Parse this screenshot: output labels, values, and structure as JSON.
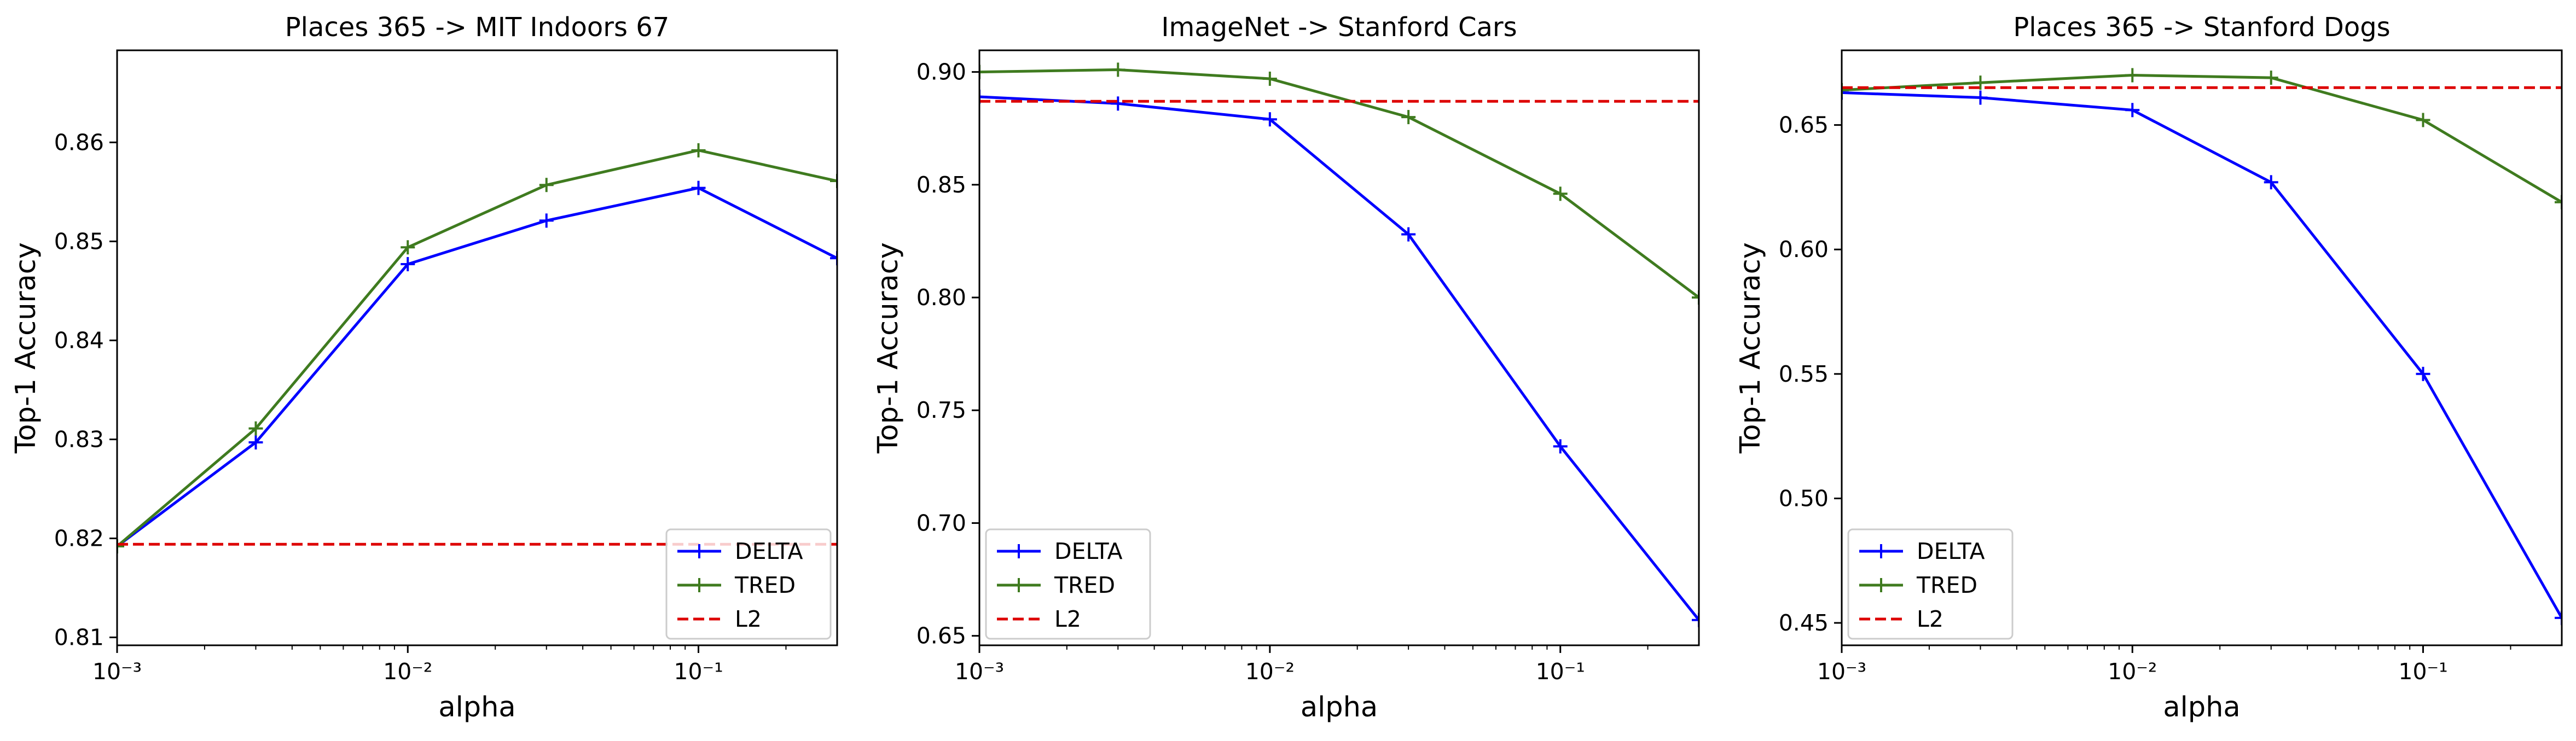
{
  "chart_data": [
    {
      "type": "line",
      "title": "Places 365 -> MIT Indoors 67",
      "xlabel": "alpha",
      "ylabel": "Top-1 Accuracy",
      "xscale": "log",
      "xlim": [
        0.001,
        0.3
      ],
      "ylim": [
        0.8092,
        0.8693
      ],
      "xticks": [
        {
          "value": 0.001,
          "label": "10⁻³"
        },
        {
          "value": 0.01,
          "label": "10⁻²"
        },
        {
          "value": 0.1,
          "label": "10⁻¹"
        }
      ],
      "yticks": [
        0.81,
        0.82,
        0.83,
        0.84,
        0.85,
        0.86
      ],
      "ytick_labels": [
        "0.81",
        "0.82",
        "0.83",
        "0.84",
        "0.85",
        "0.86"
      ],
      "legend_position": "lower right",
      "series": [
        {
          "name": "DELTA",
          "color": "#0000ff",
          "style": "solid",
          "marker": "+",
          "x": [
            0.001,
            0.003,
            0.01,
            0.03,
            0.1,
            0.3
          ],
          "y": [
            0.8192,
            0.8297,
            0.8477,
            0.8521,
            0.8554,
            0.8483
          ]
        },
        {
          "name": "TRED",
          "color": "#3f7b1f",
          "style": "solid",
          "marker": "+",
          "x": [
            0.001,
            0.003,
            0.01,
            0.03,
            0.1,
            0.3
          ],
          "y": [
            0.8192,
            0.8311,
            0.8494,
            0.8557,
            0.8592,
            0.8561
          ]
        },
        {
          "name": "L2",
          "color": "#dd0000",
          "style": "dashed",
          "marker": "",
          "x": [
            0.001,
            0.3
          ],
          "y": [
            0.8194,
            0.8194
          ]
        }
      ]
    },
    {
      "type": "line",
      "title": "ImageNet -> Stanford Cars",
      "xlabel": "alpha",
      "ylabel": "Top-1 Accuracy",
      "xscale": "log",
      "xlim": [
        0.001,
        0.3
      ],
      "ylim": [
        0.6458,
        0.9096
      ],
      "xticks": [
        {
          "value": 0.001,
          "label": "10⁻³"
        },
        {
          "value": 0.01,
          "label": "10⁻²"
        },
        {
          "value": 0.1,
          "label": "10⁻¹"
        }
      ],
      "yticks": [
        0.65,
        0.7,
        0.75,
        0.8,
        0.85,
        0.9
      ],
      "ytick_labels": [
        "0.65",
        "0.70",
        "0.75",
        "0.80",
        "0.85",
        "0.90"
      ],
      "legend_position": "lower left",
      "series": [
        {
          "name": "DELTA",
          "color": "#0000ff",
          "style": "solid",
          "marker": "+",
          "x": [
            0.001,
            0.003,
            0.01,
            0.03,
            0.1,
            0.3
          ],
          "y": [
            0.889,
            0.886,
            0.879,
            0.828,
            0.734,
            0.657
          ]
        },
        {
          "name": "TRED",
          "color": "#3f7b1f",
          "style": "solid",
          "marker": "+",
          "x": [
            0.001,
            0.003,
            0.01,
            0.03,
            0.1,
            0.3
          ],
          "y": [
            0.9,
            0.901,
            0.897,
            0.88,
            0.846,
            0.8
          ]
        },
        {
          "name": "L2",
          "color": "#dd0000",
          "style": "dashed",
          "marker": "",
          "x": [
            0.001,
            0.3
          ],
          "y": [
            0.887,
            0.887
          ]
        }
      ]
    },
    {
      "type": "line",
      "title": "Places 365 -> Stanford Dogs",
      "xlabel": "alpha",
      "ylabel": "Top-1 Accuracy",
      "xscale": "log",
      "xlim": [
        0.001,
        0.3
      ],
      "ylim": [
        0.441,
        0.68
      ],
      "xticks": [
        {
          "value": 0.001,
          "label": "10⁻³"
        },
        {
          "value": 0.01,
          "label": "10⁻²"
        },
        {
          "value": 0.1,
          "label": "10⁻¹"
        }
      ],
      "yticks": [
        0.45,
        0.5,
        0.55,
        0.6,
        0.65
      ],
      "ytick_labels": [
        "0.45",
        "0.50",
        "0.55",
        "0.60",
        "0.65"
      ],
      "legend_position": "lower left",
      "series": [
        {
          "name": "DELTA",
          "color": "#0000ff",
          "style": "solid",
          "marker": "+",
          "x": [
            0.001,
            0.003,
            0.01,
            0.03,
            0.1,
            0.3
          ],
          "y": [
            0.663,
            0.661,
            0.656,
            0.627,
            0.55,
            0.452
          ]
        },
        {
          "name": "TRED",
          "color": "#3f7b1f",
          "style": "solid",
          "marker": "+",
          "x": [
            0.001,
            0.003,
            0.01,
            0.03,
            0.1,
            0.3
          ],
          "y": [
            0.664,
            0.667,
            0.67,
            0.669,
            0.652,
            0.619
          ]
        },
        {
          "name": "L2",
          "color": "#dd0000",
          "style": "dashed",
          "marker": "",
          "x": [
            0.001,
            0.3
          ],
          "y": [
            0.665,
            0.665
          ]
        }
      ]
    }
  ]
}
